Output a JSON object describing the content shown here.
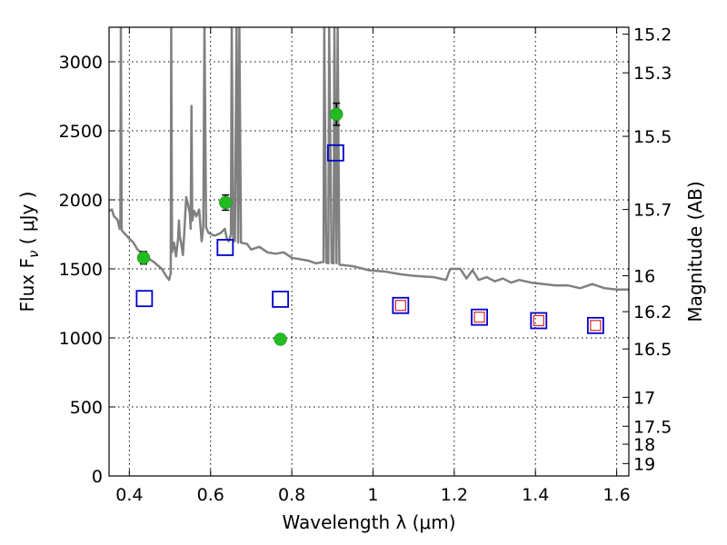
{
  "chart_data": {
    "type": "scatter",
    "xlabel": "Wavelength  λ (μm)",
    "ylabel": "Flux  F",
    "ylabel_sub": "ν",
    "ylabel_unit": " ( μJy )",
    "y2label": "Magnitude (AB)",
    "xlim": [
      0.35,
      1.63
    ],
    "ylim": [
      0,
      3250
    ],
    "grid": true,
    "x_ticks": [
      0.4,
      0.6,
      0.8,
      1.0,
      1.2,
      1.4,
      1.6
    ],
    "x_tick_labels": [
      "0.4",
      "0.6",
      "0.8",
      "1",
      "1.2",
      "1.4",
      "1.6"
    ],
    "y_ticks": [
      0,
      500,
      1000,
      1500,
      2000,
      2500,
      3000
    ],
    "y_tick_labels": [
      "0",
      "500",
      "1000",
      "1500",
      "2000",
      "2500",
      "3000"
    ],
    "y2_ticks": [
      {
        "flux": 3200,
        "label": "15.2"
      },
      {
        "flux": 2920,
        "label": "15.3"
      },
      {
        "flux": 2460,
        "label": "15.5"
      },
      {
        "flux": 1930,
        "label": "15.7"
      },
      {
        "flux": 1450,
        "label": "16"
      },
      {
        "flux": 1190,
        "label": "16.2"
      },
      {
        "flux": 920,
        "label": "16.5"
      },
      {
        "flux": 570,
        "label": "17"
      },
      {
        "flux": 360,
        "label": "17.5"
      },
      {
        "flux": 230,
        "label": "18"
      },
      {
        "flux": 90,
        "label": "19"
      }
    ],
    "series": [
      {
        "style": "line",
        "color": "#808080",
        "points": [
          [
            0.35,
            1920
          ],
          [
            0.357,
            1930
          ],
          [
            0.362,
            1880
          ],
          [
            0.37,
            1860
          ],
          [
            0.373,
            1830
          ],
          [
            0.376,
            1790
          ],
          [
            0.378,
            1870
          ],
          [
            0.379,
            3250
          ],
          [
            0.381,
            1780
          ],
          [
            0.39,
            1750
          ],
          [
            0.4,
            1720
          ],
          [
            0.41,
            1690
          ],
          [
            0.42,
            1640
          ],
          [
            0.44,
            1590
          ],
          [
            0.46,
            1550
          ],
          [
            0.48,
            1500
          ],
          [
            0.49,
            1450
          ],
          [
            0.498,
            1420
          ],
          [
            0.502,
            1470
          ],
          [
            0.503,
            3250
          ],
          [
            0.505,
            1620
          ],
          [
            0.51,
            1690
          ],
          [
            0.515,
            1590
          ],
          [
            0.52,
            1720
          ],
          [
            0.522,
            1850
          ],
          [
            0.524,
            1740
          ],
          [
            0.528,
            1680
          ],
          [
            0.532,
            1600
          ],
          [
            0.536,
            1800
          ],
          [
            0.54,
            2020
          ],
          [
            0.545,
            1960
          ],
          [
            0.549,
            1900
          ],
          [
            0.551,
            1790
          ],
          [
            0.553,
            2680
          ],
          [
            0.555,
            1850
          ],
          [
            0.56,
            1920
          ],
          [
            0.565,
            1880
          ],
          [
            0.572,
            1930
          ],
          [
            0.578,
            1700
          ],
          [
            0.582,
            1800
          ],
          [
            0.585,
            3250
          ],
          [
            0.589,
            1800
          ],
          [
            0.595,
            1760
          ],
          [
            0.61,
            1740
          ],
          [
            0.625,
            1760
          ],
          [
            0.635,
            1790
          ],
          [
            0.64,
            1720
          ],
          [
            0.645,
            1700
          ],
          [
            0.65,
            1750
          ],
          [
            0.652,
            3250
          ],
          [
            0.656,
            1720
          ],
          [
            0.66,
            1700
          ],
          [
            0.664,
            3250
          ],
          [
            0.668,
            1690
          ],
          [
            0.671,
            3250
          ],
          [
            0.675,
            1690
          ],
          [
            0.69,
            1680
          ],
          [
            0.7,
            1640
          ],
          [
            0.72,
            1660
          ],
          [
            0.74,
            1620
          ],
          [
            0.76,
            1610
          ],
          [
            0.78,
            1620
          ],
          [
            0.8,
            1580
          ],
          [
            0.82,
            1570
          ],
          [
            0.84,
            1560
          ],
          [
            0.86,
            1540
          ],
          [
            0.878,
            1550
          ],
          [
            0.88,
            3250
          ],
          [
            0.885,
            1545
          ],
          [
            0.89,
            1540
          ],
          [
            0.892,
            3250
          ],
          [
            0.898,
            1545
          ],
          [
            0.903,
            1540
          ],
          [
            0.905,
            3250
          ],
          [
            0.91,
            1540
          ],
          [
            0.913,
            3250
          ],
          [
            0.917,
            1530
          ],
          [
            0.95,
            1520
          ],
          [
            0.99,
            1490
          ],
          [
            1.03,
            1480
          ],
          [
            1.07,
            1460
          ],
          [
            1.1,
            1450
          ],
          [
            1.15,
            1440
          ],
          [
            1.18,
            1420
          ],
          [
            1.19,
            1500
          ],
          [
            1.215,
            1500
          ],
          [
            1.23,
            1430
          ],
          [
            1.245,
            1490
          ],
          [
            1.26,
            1420
          ],
          [
            1.28,
            1440
          ],
          [
            1.3,
            1410
          ],
          [
            1.32,
            1430
          ],
          [
            1.34,
            1400
          ],
          [
            1.36,
            1420
          ],
          [
            1.39,
            1400
          ],
          [
            1.42,
            1390
          ],
          [
            1.45,
            1380
          ],
          [
            1.48,
            1380
          ],
          [
            1.51,
            1360
          ],
          [
            1.54,
            1390
          ],
          [
            1.57,
            1360
          ],
          [
            1.6,
            1350
          ],
          [
            1.63,
            1350
          ]
        ]
      },
      {
        "style": "points-with-errorbars",
        "marker": "circle",
        "color": "#22bb22",
        "points": [
          {
            "x": 0.435,
            "y": 1580,
            "err": 45
          },
          {
            "x": 0.637,
            "y": 1980,
            "err": 55
          },
          {
            "x": 0.772,
            "y": 990,
            "err": 35
          },
          {
            "x": 0.91,
            "y": 2620,
            "err": 80
          }
        ]
      },
      {
        "style": "points",
        "marker": "open-square",
        "color": "#0000cc",
        "points": [
          {
            "x": 0.437,
            "y": 1285
          },
          {
            "x": 0.636,
            "y": 1655
          },
          {
            "x": 0.772,
            "y": 1280
          },
          {
            "x": 0.908,
            "y": 2340
          },
          {
            "x": 1.068,
            "y": 1235
          },
          {
            "x": 1.262,
            "y": 1150
          },
          {
            "x": 1.408,
            "y": 1125
          },
          {
            "x": 1.548,
            "y": 1090
          }
        ]
      },
      {
        "style": "points",
        "marker": "small-open-square",
        "color": "#dd2222",
        "points": [
          {
            "x": 1.068,
            "y": 1235
          },
          {
            "x": 1.262,
            "y": 1150
          },
          {
            "x": 1.408,
            "y": 1125
          },
          {
            "x": 1.548,
            "y": 1090
          }
        ]
      }
    ]
  }
}
